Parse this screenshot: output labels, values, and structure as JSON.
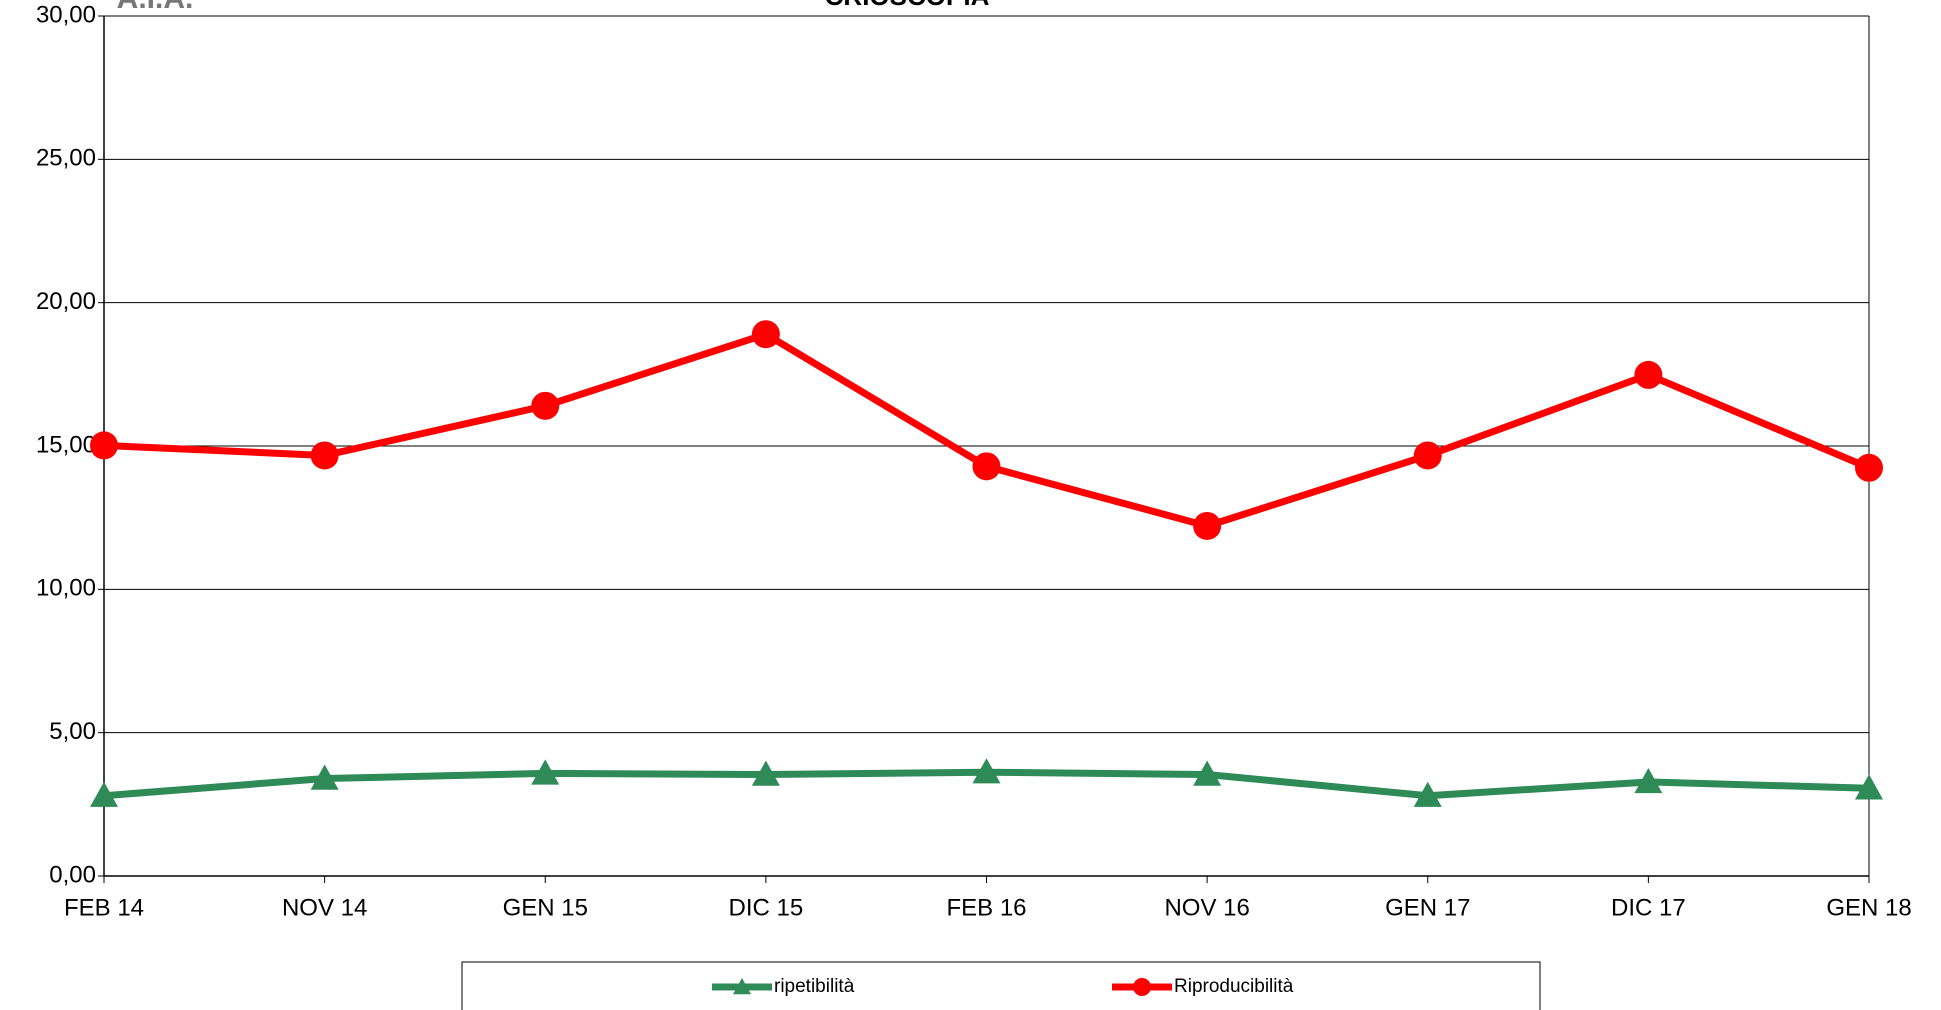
{
  "chart_data": {
    "type": "line",
    "title": "CRIOSCOPIA",
    "logo": "A.I.A.",
    "categories": [
      "FEB 14",
      "NOV 14",
      "GEN 15",
      "DIC 15",
      "FEB 16",
      "NOV 16",
      "GEN 17",
      "DIC 17",
      "GEN 18"
    ],
    "series": [
      {
        "name": "ripetibilità",
        "color": "#2e8b57",
        "marker": "triangle",
        "values": [
          2.8,
          3.4,
          3.58,
          3.54,
          3.62,
          3.54,
          2.8,
          3.28,
          3.06
        ]
      },
      {
        "name": "Riproducibilità",
        "color": "#ff0000",
        "marker": "circle",
        "values": [
          15.02,
          14.67,
          16.4,
          18.9,
          14.29,
          12.21,
          14.67,
          17.48,
          14.24
        ]
      }
    ],
    "ylim": [
      0,
      30
    ],
    "yticks": [
      {
        "value": 0,
        "label": "0,00"
      },
      {
        "value": 5,
        "label": "5,00"
      },
      {
        "value": 10,
        "label": "10,00"
      },
      {
        "value": 15,
        "label": "15,00"
      },
      {
        "value": 20,
        "label": "20,00"
      },
      {
        "value": 25,
        "label": "25,00"
      },
      {
        "value": 30,
        "label": "30,00"
      }
    ],
    "grid": true,
    "legend": "bottom"
  }
}
